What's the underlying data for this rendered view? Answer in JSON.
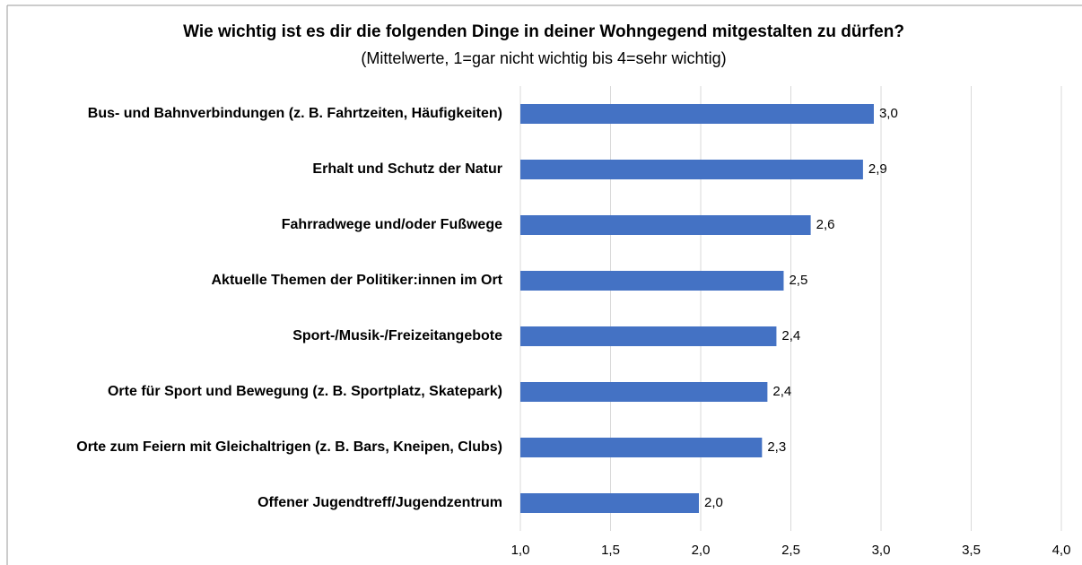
{
  "chart_data": {
    "type": "barh",
    "title": "Wie wichtig ist es dir die folgenden Dinge in deiner Wohngegend mitgestalten zu dürfen?",
    "subtitle": "(Mittelwerte, 1=gar nicht wichtig bis 4=sehr wichtig)",
    "categories": [
      "Bus- und Bahnverbindungen (z. B. Fahrtzeiten, Häufigkeiten)",
      "Erhalt und Schutz der Natur",
      "Fahrradwege und/oder Fußwege",
      "Aktuelle Themen der Politiker:innen im Ort",
      "Sport-/Musik-/Freizeitangebote",
      "Orte für Sport und Bewegung (z. B. Sportplatz, Skatepark)",
      "Orte zum Feiern mit Gleichaltrigen (z. B. Bars, Kneipen, Clubs)",
      "Offener Jugendtreff/Jugendzentrum"
    ],
    "values": [
      2.96,
      2.9,
      2.61,
      2.46,
      2.42,
      2.37,
      2.34,
      1.99
    ],
    "value_labels": [
      "3,0",
      "2,9",
      "2,6",
      "2,5",
      "2,4",
      "2,4",
      "2,3",
      "2,0"
    ],
    "color": "#4472c4",
    "xlim": [
      1,
      4
    ],
    "xticks": [
      {
        "value": 1,
        "label": "1,0"
      },
      {
        "value": 1.5,
        "label": "1,5"
      },
      {
        "value": 2,
        "label": "2,0"
      },
      {
        "value": 2.5,
        "label": "2,5"
      },
      {
        "value": 3,
        "label": "3,0"
      },
      {
        "value": 3.5,
        "label": "3,5"
      },
      {
        "value": 4,
        "label": "4,0"
      }
    ],
    "grid": true
  }
}
